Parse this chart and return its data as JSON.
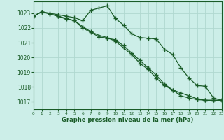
{
  "title": "Graphe pression niveau de la mer (hPa)",
  "bg": "#cceee8",
  "grid_color": "#b0d8d0",
  "lc": "#1a5c28",
  "xlim": [
    0,
    23
  ],
  "ylim": [
    1016.5,
    1023.8
  ],
  "yticks": [
    1017,
    1018,
    1019,
    1020,
    1021,
    1022,
    1023
  ],
  "xticks": [
    0,
    1,
    2,
    3,
    4,
    5,
    6,
    7,
    8,
    9,
    10,
    11,
    12,
    13,
    14,
    15,
    16,
    17,
    18,
    19,
    20,
    21,
    22,
    23
  ],
  "line1_x": [
    0,
    1,
    2,
    3,
    4,
    5,
    6,
    7,
    8,
    9,
    10,
    11,
    12,
    13,
    14,
    15,
    16,
    17,
    18,
    19,
    20,
    21,
    22,
    23
  ],
  "line1_y": [
    1022.8,
    1023.1,
    1023.0,
    1022.9,
    1022.8,
    1022.7,
    1022.5,
    1023.2,
    1023.35,
    1023.5,
    1022.65,
    1022.2,
    1021.6,
    1021.35,
    1021.3,
    1021.25,
    1020.55,
    1020.2,
    1019.3,
    1018.6,
    1018.1,
    1018.05,
    1017.25,
    1017.1
  ],
  "line2_x": [
    0,
    1,
    2,
    3,
    4,
    5,
    6,
    7,
    8,
    9,
    10,
    11,
    12,
    13,
    14,
    15,
    16,
    17,
    18,
    19,
    20,
    21,
    22,
    23
  ],
  "line2_y": [
    1022.8,
    1023.1,
    1022.95,
    1022.8,
    1022.65,
    1022.5,
    1022.0,
    1021.7,
    1021.4,
    1021.3,
    1021.2,
    1020.8,
    1020.3,
    1019.8,
    1019.3,
    1018.8,
    1018.2,
    1017.8,
    1017.6,
    1017.4,
    1017.2,
    1017.1,
    1017.1,
    1017.1
  ],
  "line3_x": [
    0,
    1,
    2,
    3,
    4,
    5,
    6,
    7,
    8,
    9,
    10,
    11,
    12,
    13,
    14,
    15,
    16,
    17,
    18,
    19,
    20,
    21,
    22,
    23
  ],
  "line3_y": [
    1022.8,
    1023.1,
    1022.95,
    1022.8,
    1022.6,
    1022.5,
    1022.1,
    1021.75,
    1021.5,
    1021.35,
    1021.1,
    1020.65,
    1020.2,
    1019.6,
    1019.2,
    1018.6,
    1018.1,
    1017.8,
    1017.4,
    1017.25,
    1017.15,
    1017.1,
    1017.1,
    1017.1
  ]
}
